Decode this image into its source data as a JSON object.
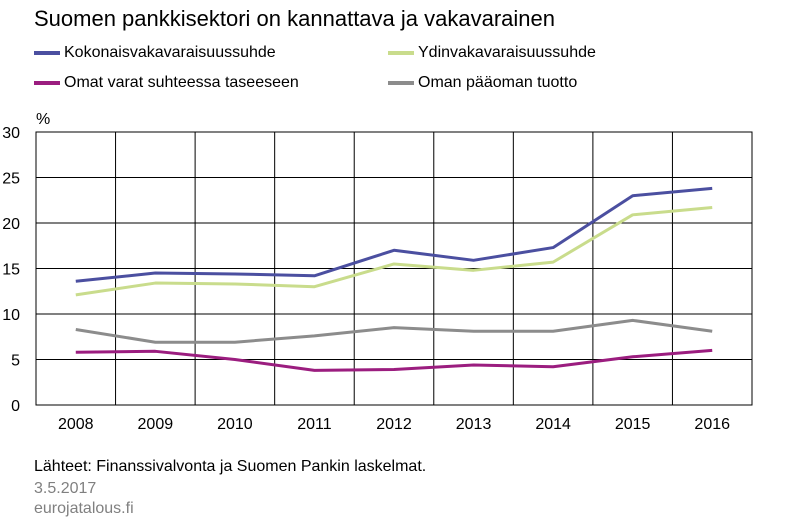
{
  "title": "Suomen pankkisektori on kannattava ja vakavarainen",
  "legend": [
    {
      "label": "Kokonaisvakavaraisuussuhde",
      "color": "#4b4fa0"
    },
    {
      "label": "Ydinvakavaraisuussuhde",
      "color": "#c9dc8c"
    },
    {
      "label": "Omat varat suhteessa taseeseen",
      "color": "#9b1d7f"
    },
    {
      "label": "Oman pääoman tuotto",
      "color": "#8c8c8c"
    }
  ],
  "footer": {
    "source": "Lähteet: Finanssivalvonta ja Suomen Pankin laskelmat.",
    "date": "3.5.2017",
    "site": "eurojatalous.fi"
  },
  "chart_data": {
    "type": "line",
    "title": "Suomen pankkisektori on kannattava ja vakavarainen",
    "ylabel": "%",
    "xlabel": "",
    "ylim": [
      0,
      30
    ],
    "yticks": [
      0,
      5,
      10,
      15,
      20,
      25,
      30
    ],
    "grid": true,
    "legend_position": "top",
    "categories": [
      "2008",
      "2009",
      "2010",
      "2011",
      "2012",
      "2013",
      "2014",
      "2015",
      "2016"
    ],
    "series": [
      {
        "name": "Kokonaisvakavaraisuussuhde",
        "color": "#4b4fa0",
        "values": [
          13.6,
          14.5,
          14.4,
          14.2,
          17.0,
          15.9,
          17.3,
          23.0,
          23.8
        ]
      },
      {
        "name": "Ydinvakavaraisuussuhde",
        "color": "#c9dc8c",
        "values": [
          12.1,
          13.4,
          13.3,
          13.0,
          15.5,
          14.8,
          15.7,
          20.9,
          21.7
        ]
      },
      {
        "name": "Omat varat suhteessa taseeseen",
        "color": "#9b1d7f",
        "values": [
          5.8,
          5.9,
          5.0,
          3.8,
          3.9,
          4.4,
          4.2,
          5.3,
          6.0
        ]
      },
      {
        "name": "Oman pääoman tuotto",
        "color": "#8c8c8c",
        "values": [
          8.3,
          6.9,
          6.9,
          7.6,
          8.5,
          8.1,
          8.1,
          9.3,
          8.1
        ]
      }
    ]
  }
}
